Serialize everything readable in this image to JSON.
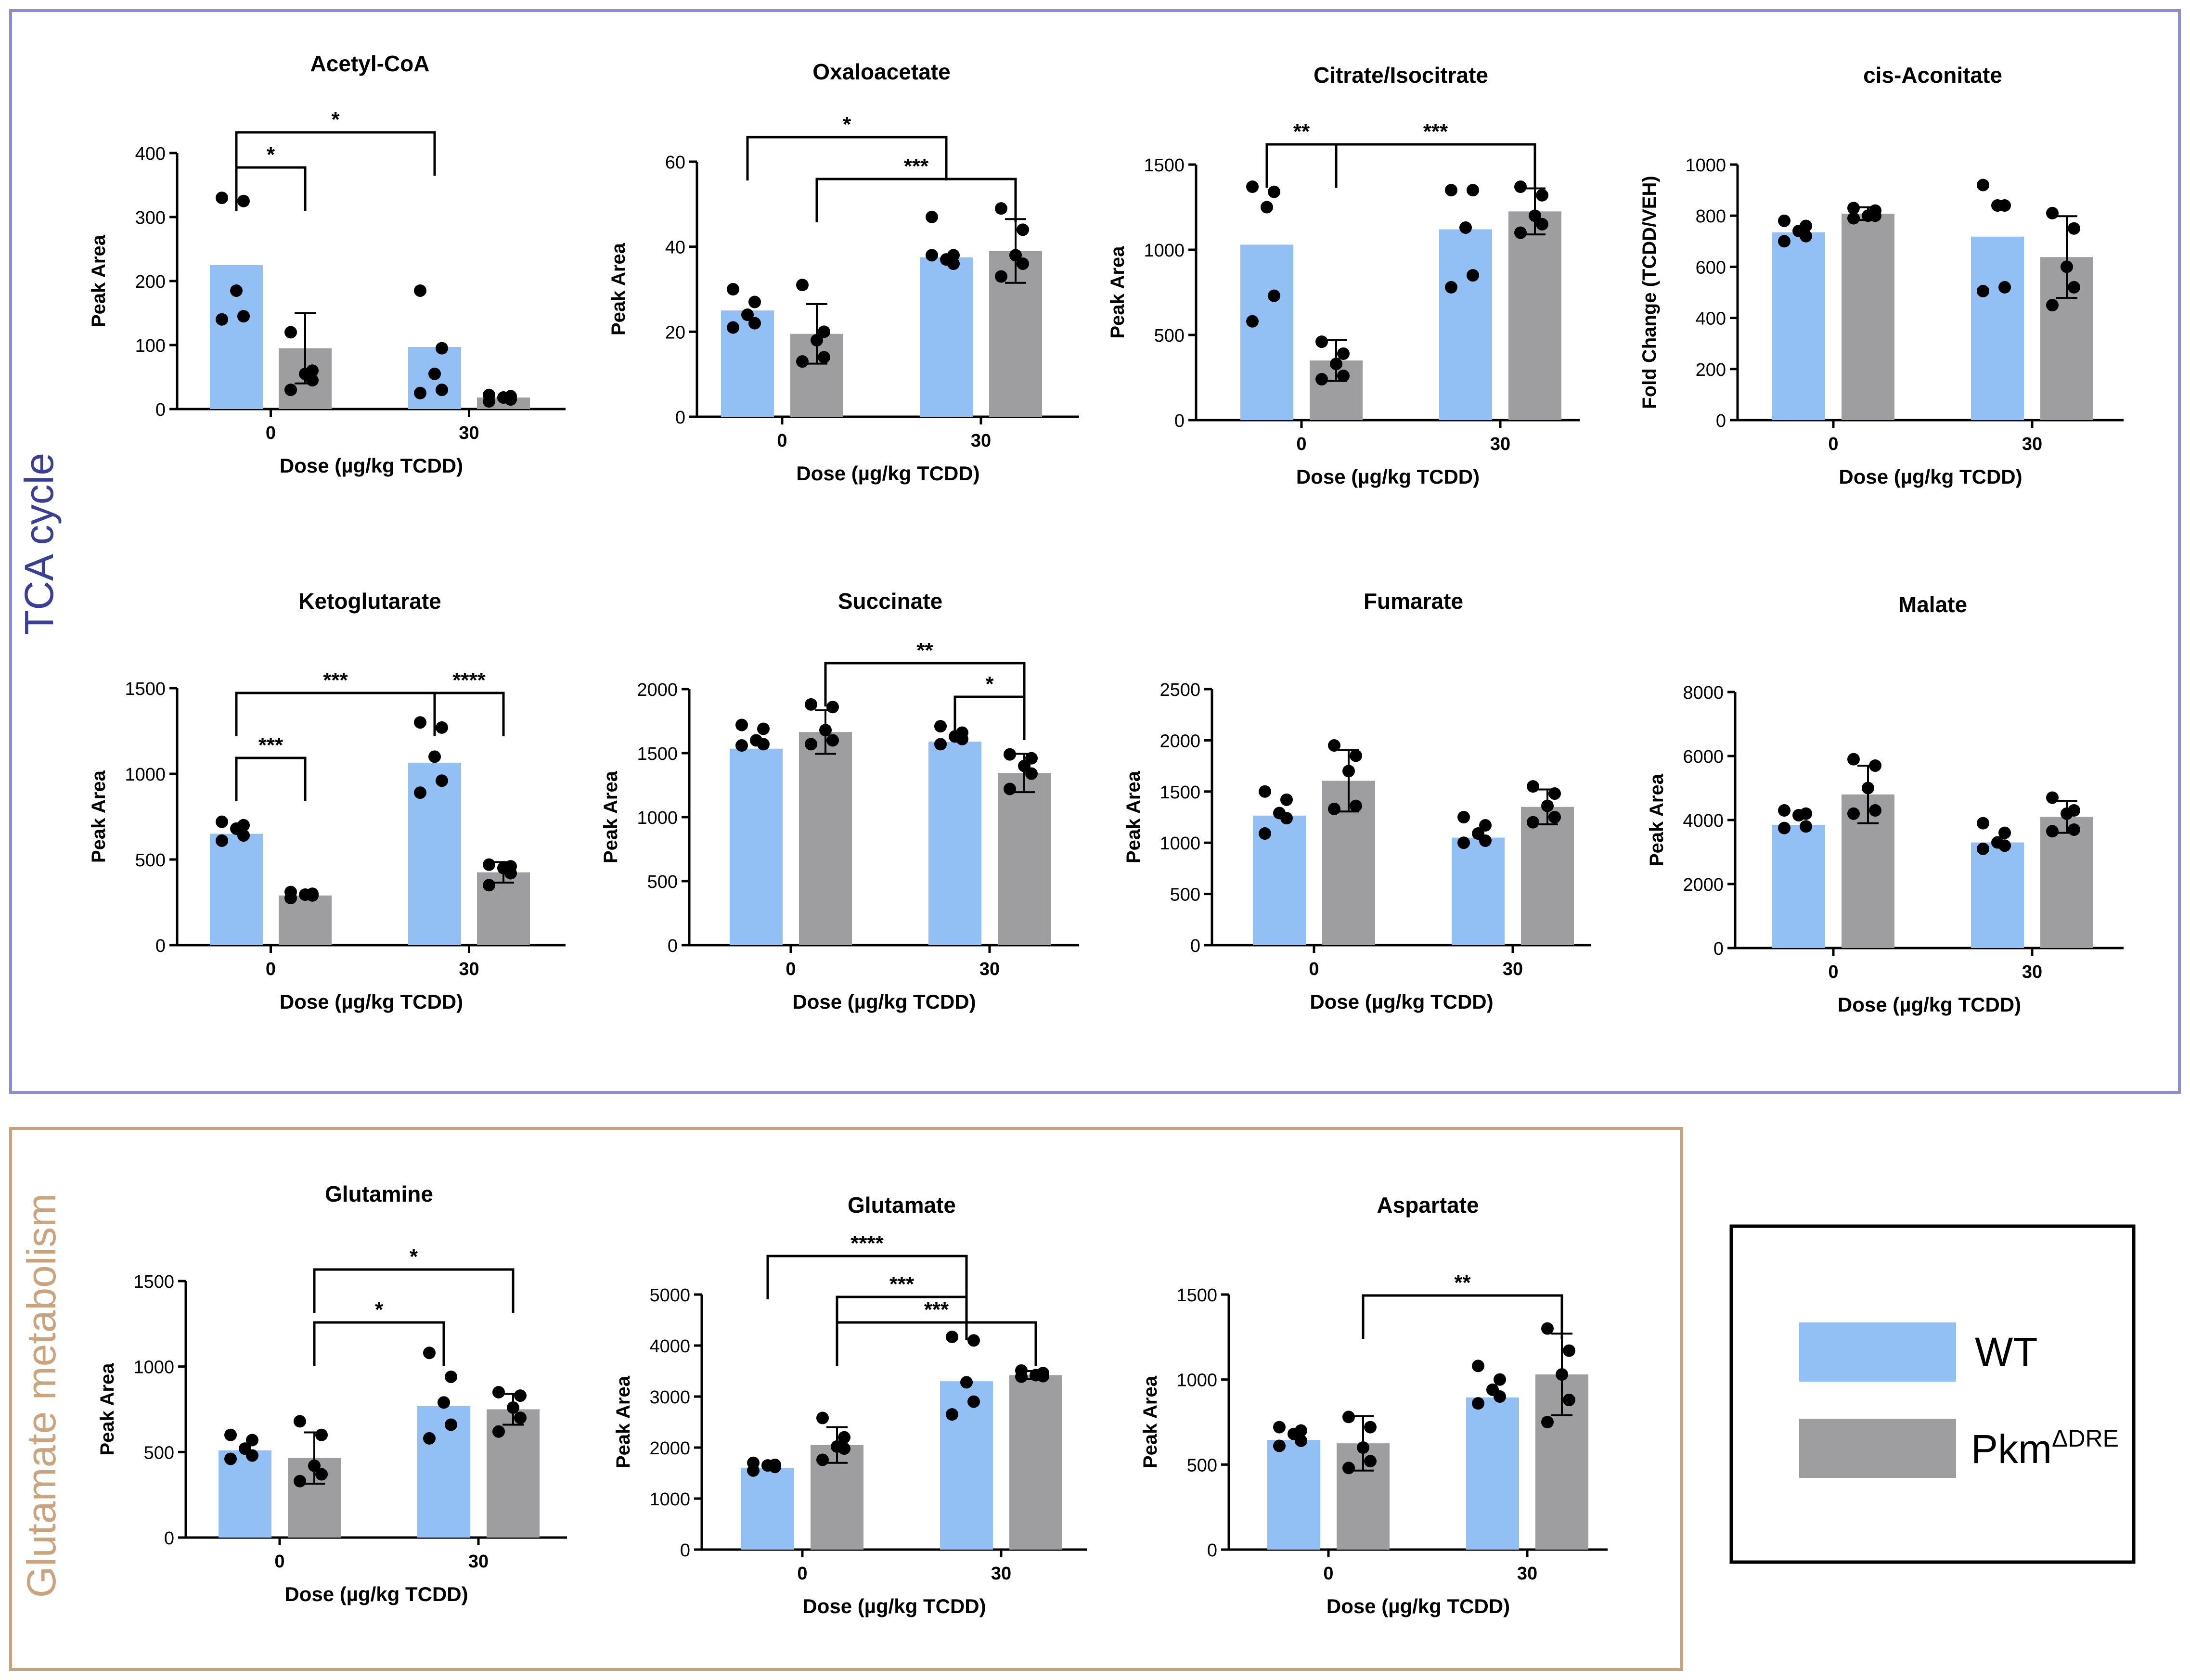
{
  "colors": {
    "wt": "#92c0f4",
    "pkm": "#9e9ea1",
    "tca_border": "#8a8fcc",
    "glu_border": "#c7a27d",
    "tca_label": "#3a3f96",
    "glu_label": "#c9a47e"
  },
  "sections": {
    "tca_label": "TCA cycle",
    "glu_label": "Glutamate metabolism"
  },
  "legend": {
    "wt_label": "WT",
    "pkm_label": "Pkm",
    "pkm_superscript": "ΔDRE"
  },
  "chart_data": [
    {
      "id": "acetyl-coa",
      "type": "bar",
      "title": "Acetyl-CoA",
      "ylabel": "Peak Area",
      "xlabel": "Dose (µg/kg TCDD)",
      "categories": [
        "0",
        "30"
      ],
      "ylim": [
        0,
        400
      ],
      "yticks": [
        0,
        100,
        200,
        300,
        400
      ],
      "series": [
        {
          "name": "WT",
          "values": [
            225,
            97
          ],
          "sd": [
            null,
            null
          ],
          "points": [
            [
              330,
              325,
              185,
              145,
              140
            ],
            [
              185,
              95,
              55,
              30,
              25
            ]
          ]
        },
        {
          "name": "PkmΔDRE",
          "values": [
            95,
            18
          ],
          "sd": [
            55,
            null
          ],
          "points": [
            [
              120,
              60,
              55,
              45,
              30
            ],
            [
              22,
              20,
              18,
              15,
              12
            ]
          ]
        }
      ],
      "annotations": [
        {
          "label": "*",
          "from": "WT-0",
          "to": "Pkm-0"
        },
        {
          "label": "*",
          "from": "WT-0",
          "to": "WT-30"
        }
      ]
    },
    {
      "id": "oxaloacetate",
      "type": "bar",
      "title": "Oxaloacetate",
      "ylabel": "Peak Area",
      "xlabel": "Dose (µg/kg TCDD)",
      "categories": [
        "0",
        "30"
      ],
      "ylim": [
        0,
        60
      ],
      "yticks": [
        0,
        20,
        40,
        60
      ],
      "series": [
        {
          "name": "WT",
          "values": [
            25,
            37.5
          ],
          "sd": [
            null,
            null
          ],
          "points": [
            [
              30,
              27,
              24,
              22,
              21
            ],
            [
              47,
              38,
              37,
              36,
              38
            ]
          ]
        },
        {
          "name": "PkmΔDRE",
          "values": [
            19.5,
            39
          ],
          "sd": [
            7,
            7.5
          ],
          "points": [
            [
              31,
              20,
              18,
              14,
              13
            ],
            [
              49,
              44,
              38,
              36,
              33
            ]
          ]
        }
      ],
      "annotations": [
        {
          "label": "*",
          "from": "WT-0",
          "to": "WT-30"
        },
        {
          "label": "***",
          "from": "Pkm-0",
          "to": "Pkm-30"
        }
      ]
    },
    {
      "id": "citrate-isocitrate",
      "type": "bar",
      "title": "Citrate/Isocitrate",
      "ylabel": "Peak Area",
      "xlabel": "Dose (µg/kg TCDD)",
      "categories": [
        "0",
        "30"
      ],
      "ylim": [
        0,
        1500
      ],
      "yticks": [
        0,
        500,
        1000,
        1500
      ],
      "series": [
        {
          "name": "WT",
          "values": [
            1030,
            1120
          ],
          "sd": [
            null,
            null
          ],
          "points": [
            [
              1370,
              1340,
              1250,
              730,
              580
            ],
            [
              1350,
              1350,
              1130,
              850,
              780
            ]
          ]
        },
        {
          "name": "PkmΔDRE",
          "values": [
            350,
            1225
          ],
          "sd": [
            120,
            135
          ],
          "points": [
            [
              460,
              390,
              330,
              260,
              240
            ],
            [
              1370,
              1320,
              1200,
              1150,
              1100
            ]
          ]
        }
      ],
      "annotations": [
        {
          "label": "**",
          "from": "WT-0",
          "to": "Pkm-0"
        },
        {
          "label": "***",
          "from": "Pkm-0",
          "to": "Pkm-30"
        }
      ]
    },
    {
      "id": "cis-aconitate",
      "type": "bar",
      "title": "cis-Aconitate",
      "ylabel": "Fold Change (TCDD/VEH)",
      "xlabel": "Dose (µg/kg TCDD)",
      "categories": [
        "0",
        "30"
      ],
      "ylim": [
        0,
        1000
      ],
      "yticks": [
        0,
        200,
        400,
        600,
        800,
        1000
      ],
      "series": [
        {
          "name": "WT",
          "values": [
            735,
            718
          ],
          "sd": [
            null,
            null
          ],
          "points": [
            [
              780,
              760,
              740,
              720,
              700
            ],
            [
              920,
              840,
              840,
              520,
              505
            ]
          ]
        },
        {
          "name": "PkmΔDRE",
          "values": [
            808,
            638
          ],
          "sd": [
            25,
            160
          ],
          "points": [
            [
              830,
              820,
              800,
              800,
              790
            ],
            [
              810,
              750,
              600,
              520,
              450
            ]
          ]
        }
      ],
      "annotations": []
    },
    {
      "id": "ketoglutarate",
      "type": "bar",
      "title": "Ketoglutarate",
      "ylabel": "Peak Area",
      "xlabel": "Dose (µg/kg TCDD)",
      "categories": [
        "0",
        "30"
      ],
      "ylim": [
        0,
        1500
      ],
      "yticks": [
        0,
        500,
        1000,
        1500
      ],
      "series": [
        {
          "name": "WT",
          "values": [
            650,
            1065
          ],
          "sd": [
            null,
            null
          ],
          "points": [
            [
              720,
              700,
              680,
              640,
              610
            ],
            [
              1300,
              1270,
              1100,
              960,
              890
            ]
          ]
        },
        {
          "name": "PkmΔDRE",
          "values": [
            290,
            425
          ],
          "sd": [
            null,
            60
          ],
          "points": [
            [
              310,
              300,
              295,
              290,
              275
            ],
            [
              470,
              460,
              450,
              420,
              350
            ]
          ]
        }
      ],
      "annotations": [
        {
          "label": "***",
          "from": "WT-0",
          "to": "Pkm-0"
        },
        {
          "label": "***",
          "from": "WT-0",
          "to": "WT-30"
        },
        {
          "label": "****",
          "from": "WT-30",
          "to": "Pkm-30"
        }
      ]
    },
    {
      "id": "succinate",
      "type": "bar",
      "title": "Succinate",
      "ylabel": "Peak Area",
      "xlabel": "Dose (µg/kg TCDD)",
      "categories": [
        "0",
        "30"
      ],
      "ylim": [
        0,
        2000
      ],
      "yticks": [
        0,
        500,
        1000,
        1500,
        2000
      ],
      "series": [
        {
          "name": "WT",
          "values": [
            1535,
            1590
          ],
          "sd": [
            null,
            null
          ],
          "points": [
            [
              1720,
              1690,
              1600,
              1570,
              1560
            ],
            [
              1710,
              1660,
              1630,
              1610,
              1570
            ]
          ]
        },
        {
          "name": "PkmΔDRE",
          "values": [
            1665,
            1345
          ],
          "sd": [
            170,
            150
          ],
          "points": [
            [
              1880,
              1860,
              1680,
              1600,
              1570
            ],
            [
              1490,
              1460,
              1400,
              1340,
              1220
            ]
          ]
        }
      ],
      "annotations": [
        {
          "label": "**",
          "from": "Pkm-0",
          "to": "Pkm-30"
        },
        {
          "label": "*",
          "from": "WT-30",
          "to": "Pkm-30"
        }
      ]
    },
    {
      "id": "fumarate",
      "type": "bar",
      "title": "Fumarate",
      "ylabel": "Peak Area",
      "xlabel": "Dose (µg/kg TCDD)",
      "categories": [
        "0",
        "30"
      ],
      "ylim": [
        0,
        2500
      ],
      "yticks": [
        0,
        500,
        1000,
        1500,
        2000,
        2500
      ],
      "series": [
        {
          "name": "WT",
          "values": [
            1265,
            1050
          ],
          "sd": [
            null,
            null
          ],
          "points": [
            [
              1500,
              1420,
              1290,
              1240,
              1090
            ],
            [
              1250,
              1170,
              1090,
              1020,
              1000
            ]
          ]
        },
        {
          "name": "PkmΔDRE",
          "values": [
            1605,
            1350
          ],
          "sd": [
            300,
            170
          ],
          "points": [
            [
              1950,
              1850,
              1700,
              1360,
              1330
            ],
            [
              1550,
              1480,
              1360,
              1250,
              1200
            ]
          ]
        }
      ],
      "annotations": []
    },
    {
      "id": "malate",
      "type": "bar",
      "title": "Malate",
      "ylabel": "Peak Area",
      "xlabel": "Dose (µg/kg TCDD)",
      "categories": [
        "0",
        "30"
      ],
      "ylim": [
        0,
        8000
      ],
      "yticks": [
        0,
        2000,
        4000,
        6000,
        8000
      ],
      "series": [
        {
          "name": "WT",
          "values": [
            3850,
            3300
          ],
          "sd": [
            null,
            null
          ],
          "points": [
            [
              4300,
              4200,
              4150,
              3800,
              3750
            ],
            [
              3900,
              3600,
              3300,
              3200,
              3100
            ]
          ]
        },
        {
          "name": "PkmΔDRE",
          "values": [
            4800,
            4100
          ],
          "sd": [
            900,
            500
          ],
          "points": [
            [
              5900,
              5700,
              5000,
              4300,
              4200
            ],
            [
              4700,
              4300,
              4200,
              3700,
              3650
            ]
          ]
        }
      ],
      "annotations": []
    },
    {
      "id": "glutamine",
      "type": "bar",
      "title": "Glutamine",
      "ylabel": "Peak Area",
      "xlabel": "Dose (µg/kg TCDD)",
      "categories": [
        "0",
        "30"
      ],
      "ylim": [
        0,
        1500
      ],
      "yticks": [
        0,
        500,
        1000,
        1500
      ],
      "series": [
        {
          "name": "WT",
          "values": [
            510,
            770
          ],
          "sd": [
            null,
            null
          ],
          "points": [
            [
              600,
              570,
              520,
              480,
              460
            ],
            [
              1080,
              940,
              790,
              660,
              580
            ]
          ]
        },
        {
          "name": "PkmΔDRE",
          "values": [
            465,
            750
          ],
          "sd": [
            150,
            90
          ],
          "points": [
            [
              680,
              600,
              420,
              370,
              330
            ],
            [
              850,
              830,
              760,
              700,
              620
            ]
          ]
        }
      ],
      "annotations": [
        {
          "label": "*",
          "from": "Pkm-0",
          "to": "WT-30"
        },
        {
          "label": "*",
          "from": "Pkm-0",
          "to": "Pkm-30"
        }
      ]
    },
    {
      "id": "glutamate",
      "type": "bar",
      "title": "Glutamate",
      "ylabel": "Peak Area",
      "xlabel": "Dose (µg/kg TCDD)",
      "categories": [
        "0",
        "30"
      ],
      "ylim": [
        0,
        5000
      ],
      "yticks": [
        0,
        1000,
        2000,
        3000,
        4000,
        5000
      ],
      "series": [
        {
          "name": "WT",
          "values": [
            1600,
            3300
          ],
          "sd": [
            null,
            null
          ],
          "points": [
            [
              1700,
              1660,
              1650,
              1620,
              1550
            ],
            [
              4170,
              4100,
              3280,
              2900,
              2650
            ]
          ]
        },
        {
          "name": "PkmΔDRE",
          "values": [
            2050,
            3420
          ],
          "sd": [
            350,
            80
          ],
          "points": [
            [
              2580,
              2200,
              2020,
              1980,
              1760
            ],
            [
              3510,
              3460,
              3420,
              3400,
              3390
            ]
          ]
        }
      ],
      "annotations": [
        {
          "label": "****",
          "from": "WT-0",
          "to": "WT-30"
        },
        {
          "label": "***",
          "from": "Pkm-0",
          "to": "Pkm-30"
        },
        {
          "label": "***",
          "from": "Pkm-0",
          "to": "WT-30"
        }
      ]
    },
    {
      "id": "aspartate",
      "type": "bar",
      "title": "Aspartate",
      "ylabel": "Peak Area",
      "xlabel": "Dose (µg/kg TCDD)",
      "categories": [
        "0",
        "30"
      ],
      "ylim": [
        0,
        1500
      ],
      "yticks": [
        0,
        500,
        1000,
        1500
      ],
      "series": [
        {
          "name": "WT",
          "values": [
            645,
            895
          ],
          "sd": [
            null,
            null
          ],
          "points": [
            [
              720,
              700,
              680,
              640,
              610
            ],
            [
              1080,
              1000,
              940,
              900,
              860
            ]
          ]
        },
        {
          "name": "PkmΔDRE",
          "values": [
            625,
            1030
          ],
          "sd": [
            160,
            240
          ],
          "points": [
            [
              780,
              720,
              600,
              520,
              480
            ],
            [
              1300,
              1170,
              1030,
              880,
              750
            ]
          ]
        }
      ],
      "annotations": [
        {
          "label": "**",
          "from": "Pkm-0",
          "to": "Pkm-30"
        }
      ]
    }
  ]
}
